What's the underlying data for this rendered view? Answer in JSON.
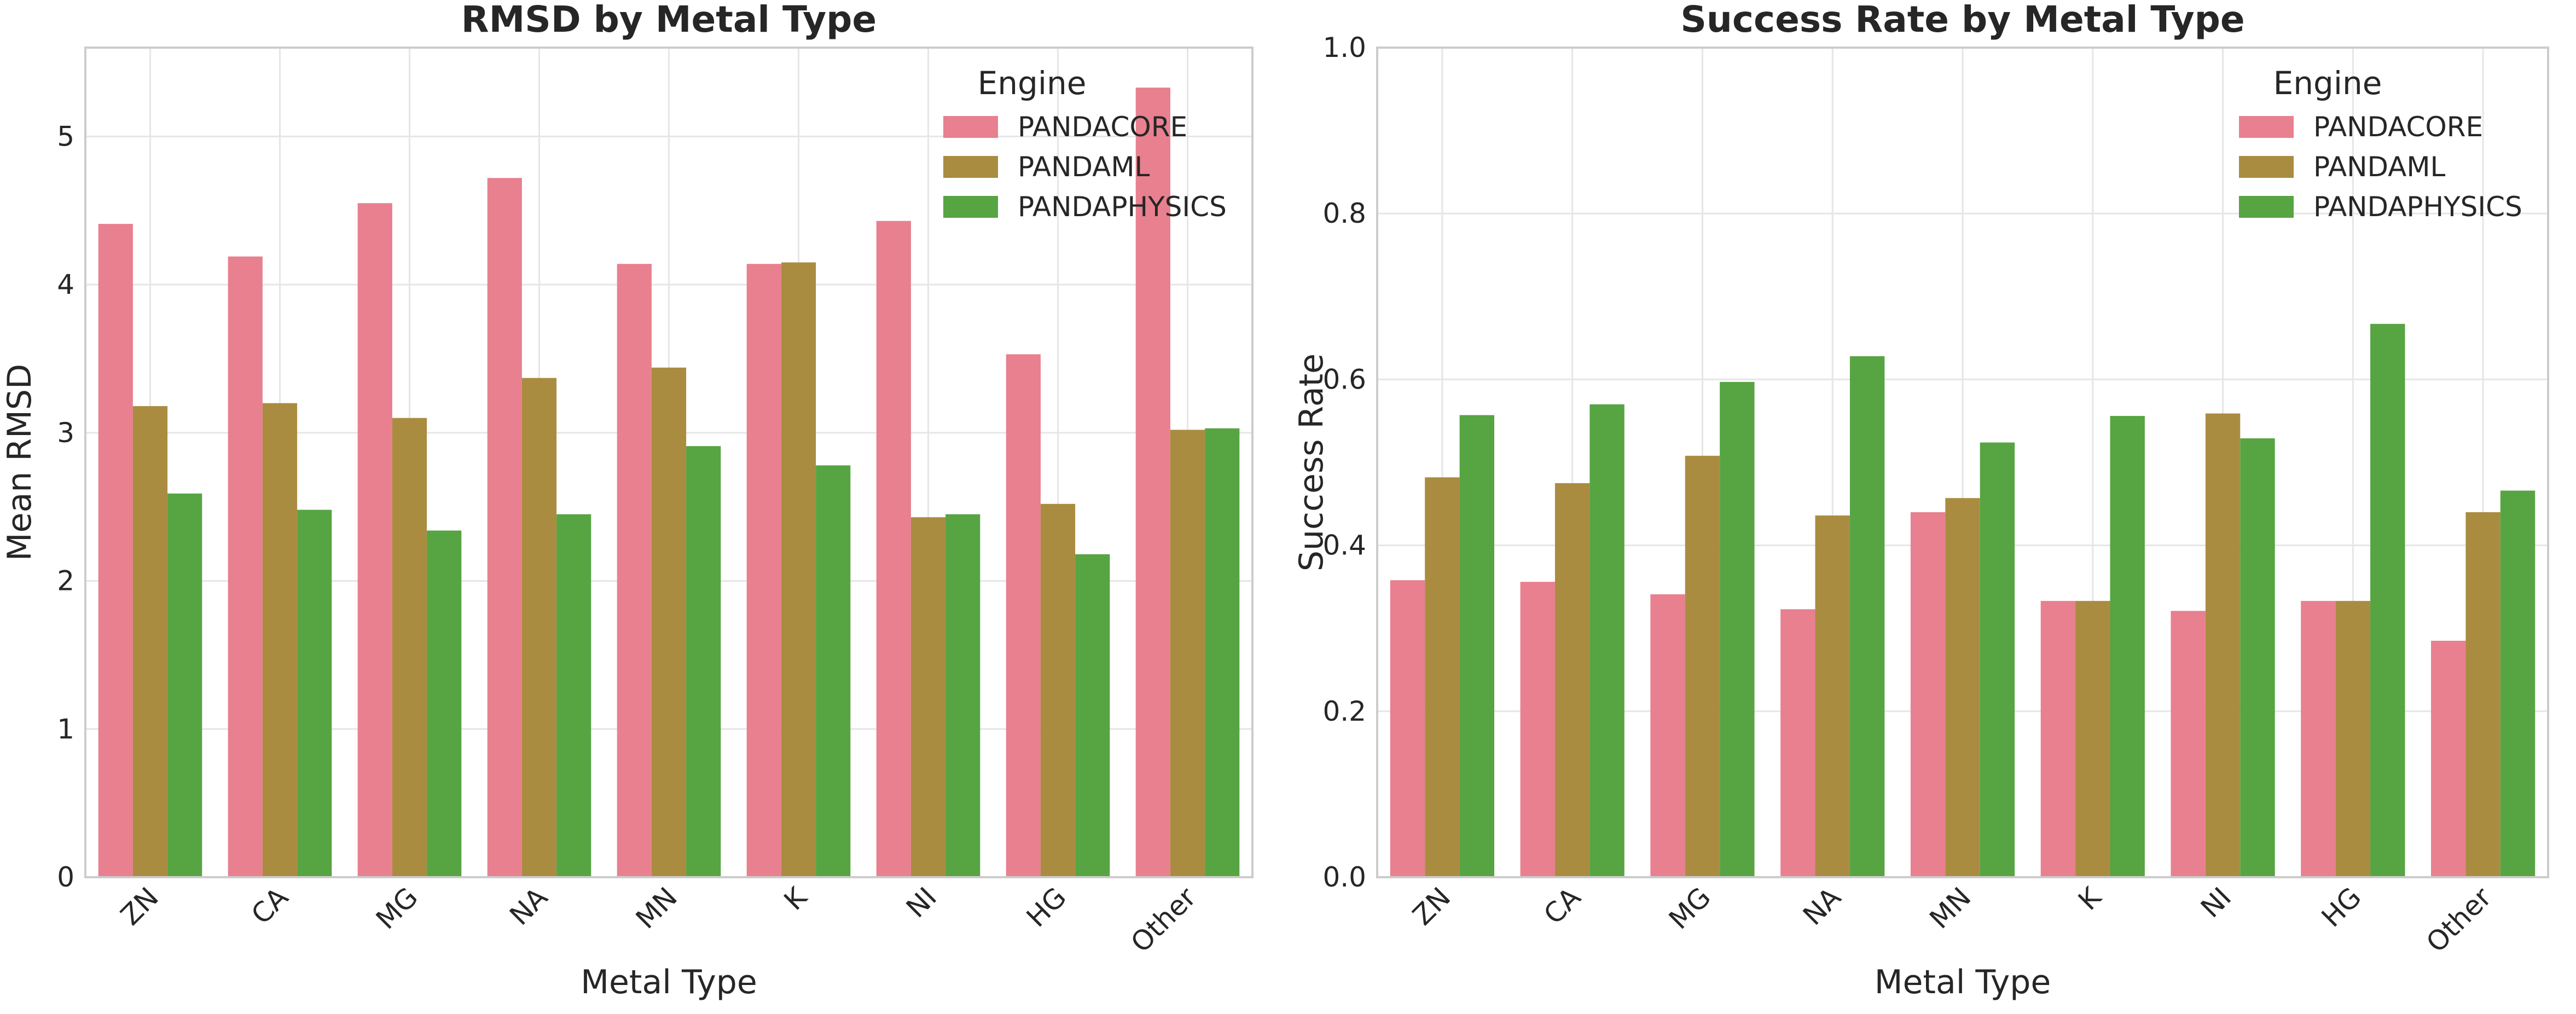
{
  "chart_data": [
    {
      "type": "bar",
      "title": "RMSD by Metal Type",
      "xlabel": "Metal Type",
      "ylabel": "Mean RMSD",
      "ylim": [
        0,
        5.6
      ],
      "yticks": [
        "0",
        "1",
        "2",
        "3",
        "4",
        "5"
      ],
      "ytick_values": [
        0,
        1,
        2,
        3,
        4,
        5
      ],
      "grid": true,
      "legend": {
        "title": "Engine",
        "placement": "top-right"
      },
      "categories": [
        "ZN",
        "CA",
        "MG",
        "NA",
        "MN",
        "K",
        "NI",
        "HG",
        "Other"
      ],
      "series": [
        {
          "name": "PANDACORE",
          "color": "#e8808f",
          "values": [
            4.41,
            4.19,
            4.55,
            4.72,
            4.14,
            4.14,
            4.43,
            3.53,
            5.33
          ]
        },
        {
          "name": "PANDAML",
          "color": "#aa8c41",
          "values": [
            3.18,
            3.2,
            3.1,
            3.37,
            3.44,
            4.15,
            2.43,
            2.52,
            3.02
          ]
        },
        {
          "name": "PANDAPHYSICS",
          "color": "#57a443",
          "values": [
            2.59,
            2.48,
            2.34,
            2.45,
            2.91,
            2.78,
            2.45,
            2.18,
            3.03
          ]
        }
      ]
    },
    {
      "type": "bar",
      "title": "Success Rate by Metal Type",
      "xlabel": "Metal Type",
      "ylabel": "Success Rate",
      "ylim": [
        0,
        1.0
      ],
      "yticks": [
        "0.0",
        "0.2",
        "0.4",
        "0.6",
        "0.8",
        "1.0"
      ],
      "ytick_values": [
        0,
        0.2,
        0.4,
        0.6,
        0.8,
        1.0
      ],
      "grid": true,
      "legend": {
        "title": "Engine",
        "placement": "top-right"
      },
      "categories": [
        "ZN",
        "CA",
        "MG",
        "NA",
        "MN",
        "K",
        "NI",
        "HG",
        "Other"
      ],
      "series": [
        {
          "name": "PANDACORE",
          "color": "#e8808f",
          "values": [
            0.358,
            0.356,
            0.341,
            0.323,
            0.44,
            0.333,
            0.321,
            0.333,
            0.285
          ]
        },
        {
          "name": "PANDAML",
          "color": "#aa8c41",
          "values": [
            0.482,
            0.475,
            0.508,
            0.436,
            0.457,
            0.333,
            0.559,
            0.333,
            0.44
          ]
        },
        {
          "name": "PANDAPHYSICS",
          "color": "#57a443",
          "values": [
            0.557,
            0.57,
            0.597,
            0.628,
            0.524,
            0.556,
            0.529,
            0.667,
            0.466
          ]
        }
      ]
    }
  ]
}
